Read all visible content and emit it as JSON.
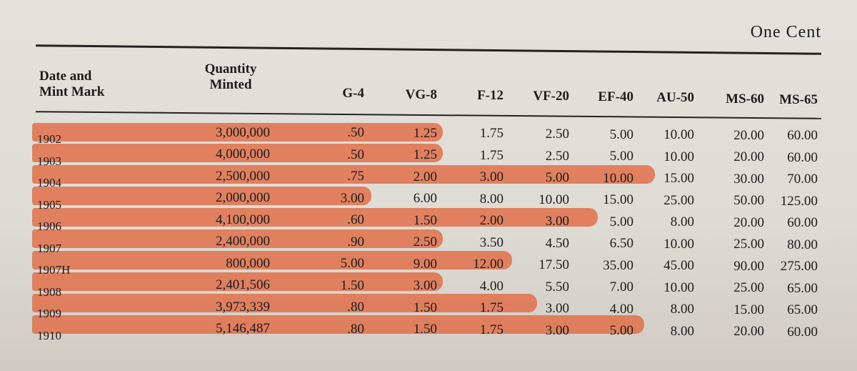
{
  "header": {
    "title": "One Cent"
  },
  "table": {
    "columns": [
      "Date and Mint Mark",
      "Quantity Minted",
      "G-4",
      "VG-8",
      "F-12",
      "VF-20",
      "EF-40",
      "AU-50",
      "MS-60",
      "MS-65"
    ],
    "rows": [
      [
        "1902",
        "3,000,000",
        ".50",
        "1.25",
        "1.75",
        "2.50",
        "5.00",
        "10.00",
        "20.00",
        "60.00"
      ],
      [
        "1903",
        "4,000,000",
        ".50",
        "1.25",
        "1.75",
        "2.50",
        "5.00",
        "10.00",
        "20.00",
        "60.00"
      ],
      [
        "1904",
        "2,500,000",
        ".75",
        "2.00",
        "3.00",
        "5.00",
        "10.00",
        "15.00",
        "30.00",
        "70.00"
      ],
      [
        "1905",
        "2,000,000",
        "3.00",
        "6.00",
        "8.00",
        "10.00",
        "15.00",
        "25.00",
        "50.00",
        "125.00"
      ],
      [
        "1906",
        "4,100,000",
        ".60",
        "1.50",
        "2.00",
        "3.00",
        "5.00",
        "8.00",
        "20.00",
        "60.00"
      ],
      [
        "1907",
        "2,400,000",
        ".90",
        "2.50",
        "3.50",
        "4.50",
        "6.50",
        "10.00",
        "25.00",
        "80.00"
      ],
      [
        "1907H",
        "800,000",
        "5.00",
        "9.00",
        "12.00",
        "17.50",
        "35.00",
        "45.00",
        "90.00",
        "275.00"
      ],
      [
        "1908",
        "2,401,506",
        "1.50",
        "3.00",
        "4.00",
        "5.50",
        "7.00",
        "10.00",
        "25.00",
        "65.00"
      ],
      [
        "1909",
        "3,973,339",
        ".80",
        "1.50",
        "1.75",
        "3.00",
        "4.00",
        "8.00",
        "15.00",
        "65.00"
      ],
      [
        "1910",
        "5,146,487",
        ".80",
        "1.50",
        "1.75",
        "3.00",
        "5.00",
        "8.00",
        "20.00",
        "60.00"
      ]
    ]
  }
}
